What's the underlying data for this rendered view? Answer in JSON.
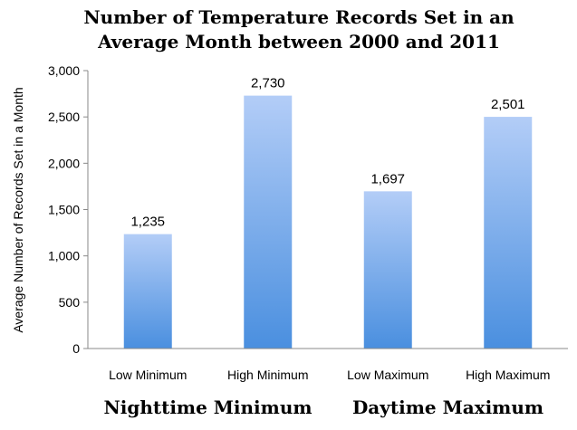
{
  "chart_data": {
    "type": "bar",
    "title_lines": [
      "Number of Temperature Records Set in an",
      "Average Month between 2000 and 2011"
    ],
    "ylabel": "Average Number of Records Set in a Month",
    "xlabel": "",
    "ylim": [
      0,
      3000
    ],
    "yticks": [
      0,
      500,
      1000,
      1500,
      2000,
      2500,
      3000
    ],
    "ytick_labels": [
      "0",
      "500",
      "1,000",
      "1,500",
      "2,000",
      "2,500",
      "3,000"
    ],
    "categories": [
      "Low Minimum",
      "High Minimum",
      "Low Maximum",
      "High Maximum"
    ],
    "values": [
      1235,
      2730,
      1697,
      2501
    ],
    "data_labels": [
      "1,235",
      "2,730",
      "1,697",
      "2,501"
    ],
    "groups": [
      {
        "label": "Nighttime Minimum",
        "categories": [
          0,
          1
        ]
      },
      {
        "label": "Daytime Maximum",
        "categories": [
          2,
          3
        ]
      }
    ],
    "grid": false,
    "legend": "none",
    "colors": {
      "bar_top": "#b3cdf7",
      "bar_bottom": "#4a8fdf",
      "axis": "#888888"
    }
  }
}
